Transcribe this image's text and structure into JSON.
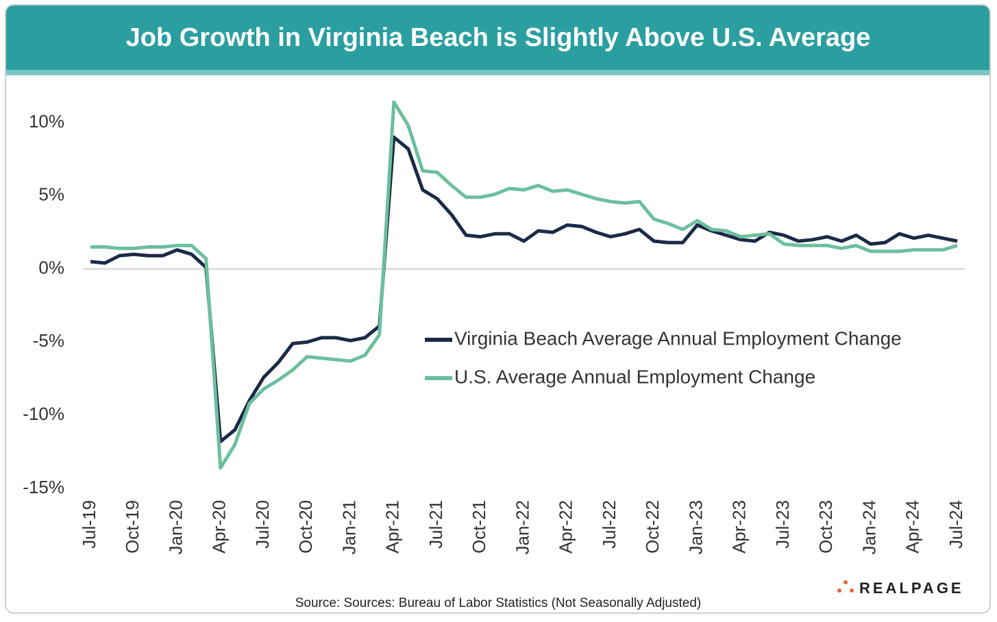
{
  "chart_data": {
    "type": "line",
    "title": "Job Growth in Virginia Beach is Slightly Above U.S. Average",
    "source": "Source: Sources: Bureau of Labor Statistics (Not Seasonally Adjusted)",
    "logo": "REALPAGE",
    "categories": [
      "Jul-19",
      null,
      null,
      "Oct-19",
      null,
      null,
      "Jan-20",
      null,
      null,
      "Apr-20",
      null,
      null,
      "Jul-20",
      null,
      null,
      "Oct-20",
      null,
      null,
      "Jan-21",
      null,
      null,
      "Apr-21",
      null,
      null,
      "Jul-21",
      null,
      null,
      "Oct-21",
      null,
      null,
      "Jan-22",
      null,
      null,
      "Apr-22",
      null,
      null,
      "Jul-22",
      null,
      null,
      "Oct-22",
      null,
      null,
      "Jan-23",
      null,
      null,
      "Apr-23",
      null,
      null,
      "Jul-23",
      null,
      null,
      "Oct-23",
      null,
      null,
      "Jan-24",
      null,
      null,
      "Apr-24",
      null,
      null,
      "Jul-24"
    ],
    "series": [
      {
        "name": "Virginia Beach Average Annual Employment Change",
        "color": "#1b2a47",
        "values": [
          0.5,
          0.4,
          0.9,
          1.0,
          0.9,
          0.9,
          1.3,
          1.0,
          0.1,
          -11.8,
          -11.0,
          -9.0,
          -7.4,
          -6.4,
          -5.1,
          -5.0,
          -4.7,
          -4.7,
          -4.9,
          -4.7,
          -3.9,
          9.0,
          8.2,
          5.4,
          4.8,
          3.7,
          2.3,
          2.2,
          2.4,
          2.4,
          1.9,
          2.6,
          2.5,
          3.0,
          2.9,
          2.5,
          2.2,
          2.4,
          2.7,
          1.9,
          1.8,
          1.8,
          3.0,
          2.6,
          2.3,
          2.0,
          1.9,
          2.5,
          2.3,
          1.9,
          2.0,
          2.2,
          1.9,
          2.3,
          1.7,
          1.8,
          2.4,
          2.1,
          2.3,
          2.1,
          1.9
        ]
      },
      {
        "name": "U.S. Average Annual Employment Change",
        "color": "#6cbf9e",
        "values": [
          1.5,
          1.5,
          1.4,
          1.4,
          1.5,
          1.5,
          1.6,
          1.6,
          0.7,
          -13.6,
          -12.0,
          -9.2,
          -8.2,
          -7.6,
          -6.9,
          -6.0,
          -6.1,
          -6.2,
          -6.3,
          -5.9,
          -4.5,
          11.4,
          9.8,
          6.7,
          6.6,
          5.7,
          4.9,
          4.9,
          5.1,
          5.5,
          5.4,
          5.7,
          5.3,
          5.4,
          5.1,
          4.8,
          4.6,
          4.5,
          4.6,
          3.4,
          3.1,
          2.7,
          3.3,
          2.7,
          2.6,
          2.2,
          2.3,
          2.4,
          1.7,
          1.6,
          1.6,
          1.6,
          1.4,
          1.6,
          1.2,
          1.2,
          1.2,
          1.3,
          1.3,
          1.3,
          1.6
        ]
      }
    ],
    "ylim": [
      -15,
      12
    ],
    "yticks": [
      {
        "value": 10,
        "label": "10%"
      },
      {
        "value": 5,
        "label": "5%"
      },
      {
        "value": 0,
        "label": "0%"
      },
      {
        "value": -5,
        "label": "-5%"
      },
      {
        "value": -10,
        "label": "-10%"
      },
      {
        "value": -15,
        "label": "-15%"
      }
    ],
    "grid": false
  }
}
